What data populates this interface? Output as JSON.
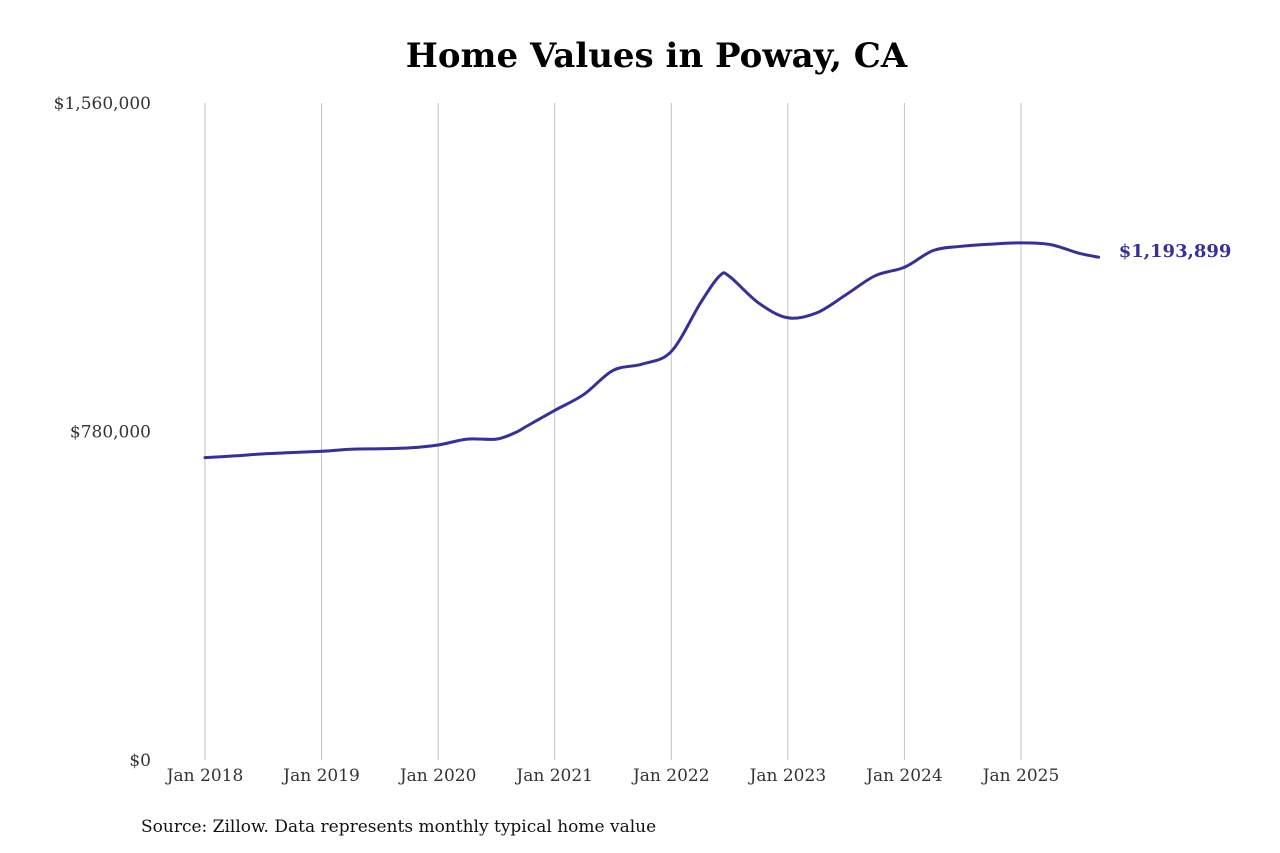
{
  "chart_data": {
    "type": "line",
    "title": "Home Values in Poway, CA",
    "xlabel": "",
    "ylabel": "",
    "ylim": [
      0,
      1560000
    ],
    "y_ticks": [
      0,
      780000,
      1560000
    ],
    "y_tick_labels": [
      "$0",
      "$780,000",
      "$1,560,000"
    ],
    "x_ticks": [
      "2018-01",
      "2019-01",
      "2020-01",
      "2021-01",
      "2022-01",
      "2023-01",
      "2024-01",
      "2025-01"
    ],
    "x_tick_labels": [
      "Jan 2018",
      "Jan 2019",
      "Jan 2020",
      "Jan 2021",
      "Jan 2022",
      "Jan 2023",
      "Jan 2024",
      "Jan 2025"
    ],
    "grid": "vertical",
    "series": [
      {
        "color": "#35309a",
        "end_label": "$1,193,899",
        "points": [
          [
            "2018-01",
            718000
          ],
          [
            "2018-04",
            722000
          ],
          [
            "2018-07",
            727000
          ],
          [
            "2018-10",
            730000
          ],
          [
            "2019-01",
            733000
          ],
          [
            "2019-04",
            738000
          ],
          [
            "2019-07",
            739000
          ],
          [
            "2019-10",
            741000
          ],
          [
            "2020-01",
            748000
          ],
          [
            "2020-04",
            762000
          ],
          [
            "2020-07",
            762000
          ],
          [
            "2020-09",
            778000
          ],
          [
            "2020-10",
            791000
          ],
          [
            "2021-01",
            830000
          ],
          [
            "2021-04",
            868000
          ],
          [
            "2021-07",
            925000
          ],
          [
            "2021-10",
            940000
          ],
          [
            "2022-01",
            970000
          ],
          [
            "2022-04",
            1085000
          ],
          [
            "2022-06",
            1150000
          ],
          [
            "2022-07",
            1148000
          ],
          [
            "2022-10",
            1085000
          ],
          [
            "2023-01",
            1050000
          ],
          [
            "2023-04",
            1062000
          ],
          [
            "2023-07",
            1105000
          ],
          [
            "2023-10",
            1150000
          ],
          [
            "2024-01",
            1170000
          ],
          [
            "2024-04",
            1210000
          ],
          [
            "2024-07",
            1220000
          ],
          [
            "2024-10",
            1225000
          ],
          [
            "2025-01",
            1228000
          ],
          [
            "2025-04",
            1224000
          ],
          [
            "2025-07",
            1203000
          ],
          [
            "2025-09",
            1193899
          ]
        ]
      }
    ]
  },
  "source_note": "Source: Zillow. Data represents monthly typical home value"
}
